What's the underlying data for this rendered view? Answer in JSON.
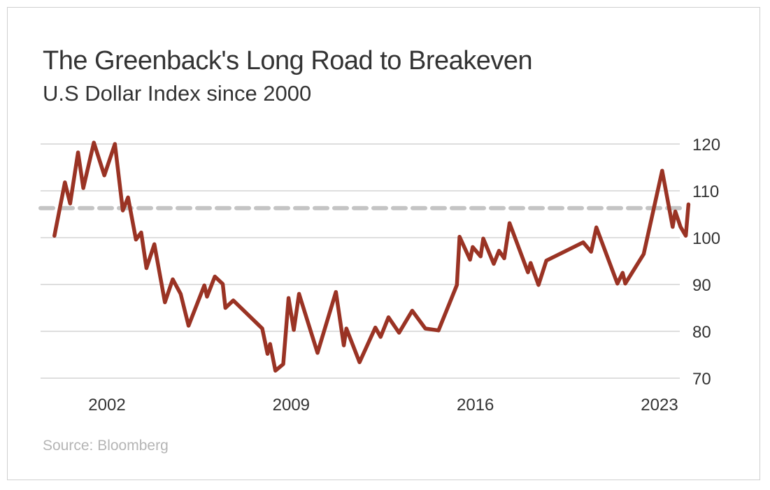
{
  "chart_data": {
    "type": "line",
    "title": "The Greenback's Long Road to Breakeven",
    "subtitle": "U.S Dollar Index since 2000",
    "source": "Source: Bloomberg",
    "xlabel": "",
    "ylabel": "",
    "xlim": [
      1999.5,
      2024.3
    ],
    "ylim": [
      70,
      120
    ],
    "x_ticks": [
      2002,
      2009,
      2016,
      2023
    ],
    "x_tick_labels": [
      "2002",
      "2009",
      "2016",
      "2023"
    ],
    "y_ticks": [
      70,
      80,
      90,
      100,
      110,
      120
    ],
    "y_tick_labels": [
      "70",
      "80",
      "90",
      "100",
      "110",
      "120"
    ],
    "y_axis_side": "right",
    "grid": "horizontal",
    "reference_line": {
      "value": 106.3,
      "style": "dashed",
      "color": "#c4c4c4"
    },
    "line_color": "#9a3324",
    "series": [
      {
        "x": [
          2000.0,
          2000.4,
          2000.6,
          2000.9,
          2001.1,
          2001.5,
          2001.9,
          2002.3,
          2002.6,
          2002.8,
          2003.1,
          2003.3,
          2003.5,
          2003.8,
          2004.2,
          2004.5,
          2004.8,
          2005.1,
          2005.7,
          2005.8,
          2006.1,
          2006.4,
          2006.5,
          2006.8,
          2007.9,
          2008.1,
          2008.2,
          2008.4,
          2008.7,
          2008.9,
          2009.1,
          2009.3,
          2010.0,
          2010.7,
          2011.0,
          2011.1,
          2011.6,
          2012.2,
          2012.4,
          2012.7,
          2013.1,
          2013.6,
          2014.1,
          2014.6,
          2015.3,
          2015.4,
          2015.8,
          2015.9,
          2016.2,
          2016.3,
          2016.7,
          2016.9,
          2017.1,
          2017.3,
          2018.0,
          2018.1,
          2018.4,
          2018.7,
          2020.1,
          2020.4,
          2020.6,
          2021.4,
          2021.6,
          2021.7,
          2022.4,
          2023.1,
          2023.5,
          2023.6,
          2023.8,
          2024.0,
          2024.1
        ],
        "y": [
          100.4,
          111.8,
          107.3,
          118.2,
          110.6,
          120.3,
          113.3,
          120.0,
          105.8,
          108.6,
          99.6,
          101.1,
          93.5,
          98.6,
          86.2,
          91.1,
          88.0,
          81.2,
          89.8,
          87.4,
          91.7,
          90.1,
          85.0,
          86.6,
          80.6,
          75.2,
          77.3,
          71.6,
          73.0,
          87.1,
          80.3,
          88.0,
          75.4,
          88.4,
          77.0,
          80.6,
          73.4,
          80.8,
          78.8,
          83.0,
          79.7,
          84.4,
          80.6,
          80.2,
          89.9,
          100.2,
          95.3,
          98.0,
          96.0,
          99.8,
          94.4,
          97.2,
          95.6,
          103.1,
          92.6,
          94.6,
          89.9,
          95.1,
          99.0,
          97.0,
          102.2,
          90.2,
          92.5,
          90.2,
          96.5,
          114.3,
          102.3,
          105.6,
          102.3,
          100.4,
          107.1
        ]
      }
    ]
  }
}
